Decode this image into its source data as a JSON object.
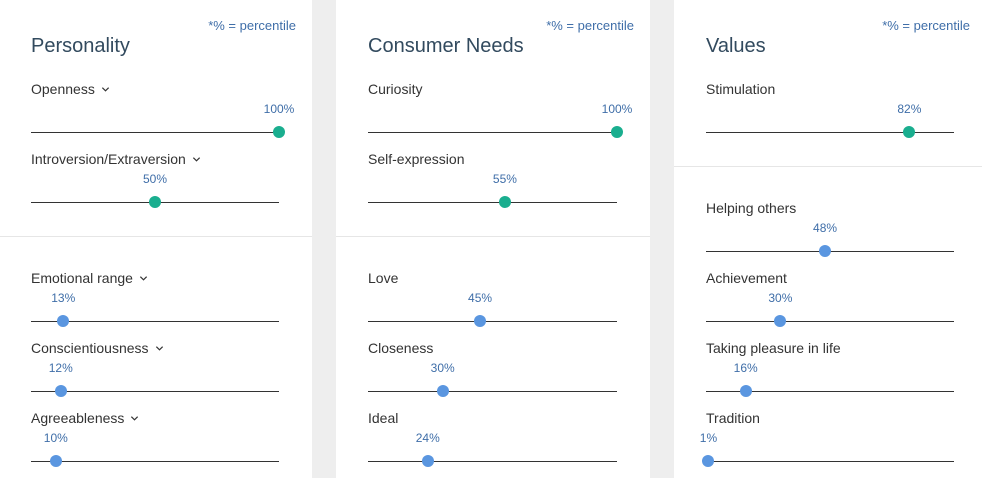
{
  "note": "*% = percentile",
  "panels": [
    {
      "title": "Personality",
      "top": [
        {
          "label": "Openness",
          "percentile": "100%",
          "value": 1.0,
          "dropdown": true
        },
        {
          "label": "Introversion/Extraversion",
          "percentile": "50%",
          "value": 0.5,
          "dropdown": true
        }
      ],
      "bottom": [
        {
          "label": "Emotional range",
          "percentile": "13%",
          "value": 0.13,
          "dropdown": true
        },
        {
          "label": "Conscientiousness",
          "percentile": "12%",
          "value": 0.12,
          "dropdown": true
        },
        {
          "label": "Agreeableness",
          "percentile": "10%",
          "value": 0.1,
          "dropdown": true
        }
      ]
    },
    {
      "title": "Consumer Needs",
      "top": [
        {
          "label": "Curiosity",
          "percentile": "100%",
          "value": 1.0,
          "dropdown": false
        },
        {
          "label": "Self-expression",
          "percentile": "55%",
          "value": 0.55,
          "dropdown": false
        }
      ],
      "bottom": [
        {
          "label": "Love",
          "percentile": "45%",
          "value": 0.45,
          "dropdown": false
        },
        {
          "label": "Closeness",
          "percentile": "30%",
          "value": 0.3,
          "dropdown": false
        },
        {
          "label": "Ideal",
          "percentile": "24%",
          "value": 0.24,
          "dropdown": false
        }
      ]
    },
    {
      "title": "Values",
      "top": [
        {
          "label": "Stimulation",
          "percentile": "82%",
          "value": 0.82,
          "dropdown": false
        }
      ],
      "bottom": [
        {
          "label": "Helping others",
          "percentile": "48%",
          "value": 0.48,
          "dropdown": false
        },
        {
          "label": "Achievement",
          "percentile": "30%",
          "value": 0.3,
          "dropdown": false
        },
        {
          "label": "Taking pleasure in life",
          "percentile": "16%",
          "value": 0.16,
          "dropdown": false
        },
        {
          "label": "Tradition",
          "percentile": "1%",
          "value": 0.01,
          "dropdown": false
        }
      ]
    }
  ],
  "colors": {
    "high": "#1aae8f",
    "low": "#5a96e0",
    "percent_text": "#3f6ea8",
    "track": "#333333"
  }
}
